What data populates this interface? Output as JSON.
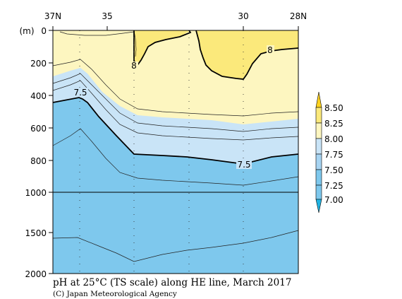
{
  "chart_data": {
    "type": "contour",
    "title": "pH at 25°C (TS scale) along HE line, March 2017",
    "credit": "(C) Japan Meteorological Agency",
    "y_unit_label": "(m)",
    "x_ticks": [
      "37N",
      "35",
      "30",
      "28N"
    ],
    "y_ticks_upper": [
      "0",
      "200",
      "400",
      "600",
      "800",
      "1000"
    ],
    "y_ticks_lower": [
      "1500",
      "2000"
    ],
    "y_range": [
      0,
      2000
    ],
    "y_break": 1000,
    "contour_labels": [
      "8",
      "8",
      "7.5",
      "7.5"
    ],
    "colorbar": {
      "levels": [
        "8.50",
        "8.25",
        "8.00",
        "7.75",
        "7.50",
        "7.25",
        "7.00"
      ],
      "colors": [
        "#ffd21f",
        "#fbe97b",
        "#fdf6c0",
        "#c9e4f7",
        "#a7d4f2",
        "#7ec8ed",
        "#20b3e2"
      ]
    },
    "fill_colors": {
      "above_8": "#fbe97b",
      "between_775_8": "#fdf6c0",
      "between_75_775": "#c9e4f7",
      "below_75": "#7ec8ed"
    }
  }
}
